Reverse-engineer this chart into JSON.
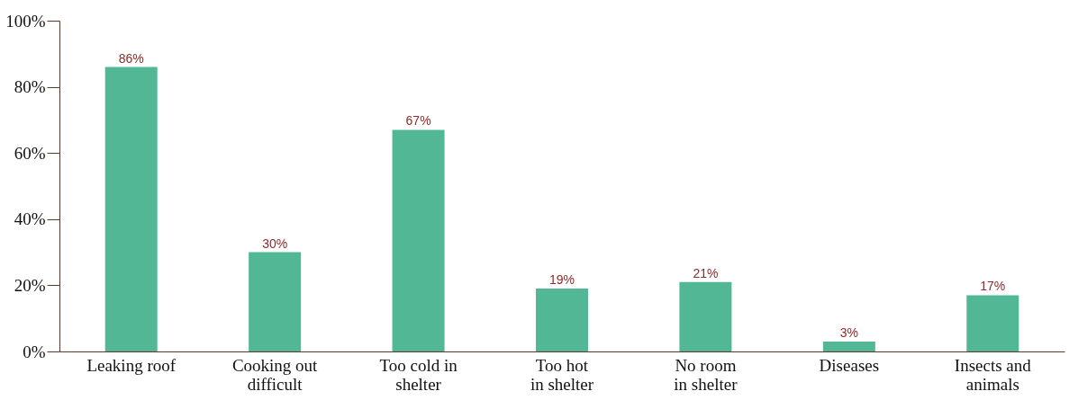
{
  "chart_data": {
    "type": "bar",
    "categories": [
      "Leaking roof",
      "Cooking out\ndifficult",
      "Too cold in\nshelter",
      "Too hot\nin shelter",
      "No room\nin shelter",
      "Diseases",
      "Insects and\nanimals"
    ],
    "values": [
      86,
      30,
      67,
      19,
      21,
      3,
      17
    ],
    "value_labels": [
      "86%",
      "30%",
      "67%",
      "19%",
      "21%",
      "3%",
      "17%"
    ],
    "color": "#52b795",
    "ylim": [
      0,
      100
    ],
    "yticks": [
      {
        "value": 0,
        "label": "0%"
      },
      {
        "value": 20,
        "label": "20%"
      },
      {
        "value": 40,
        "label": "40%"
      },
      {
        "value": 60,
        "label": "60%"
      },
      {
        "value": 80,
        "label": "80%"
      },
      {
        "value": 100,
        "label": "100%"
      }
    ],
    "grid": false
  }
}
